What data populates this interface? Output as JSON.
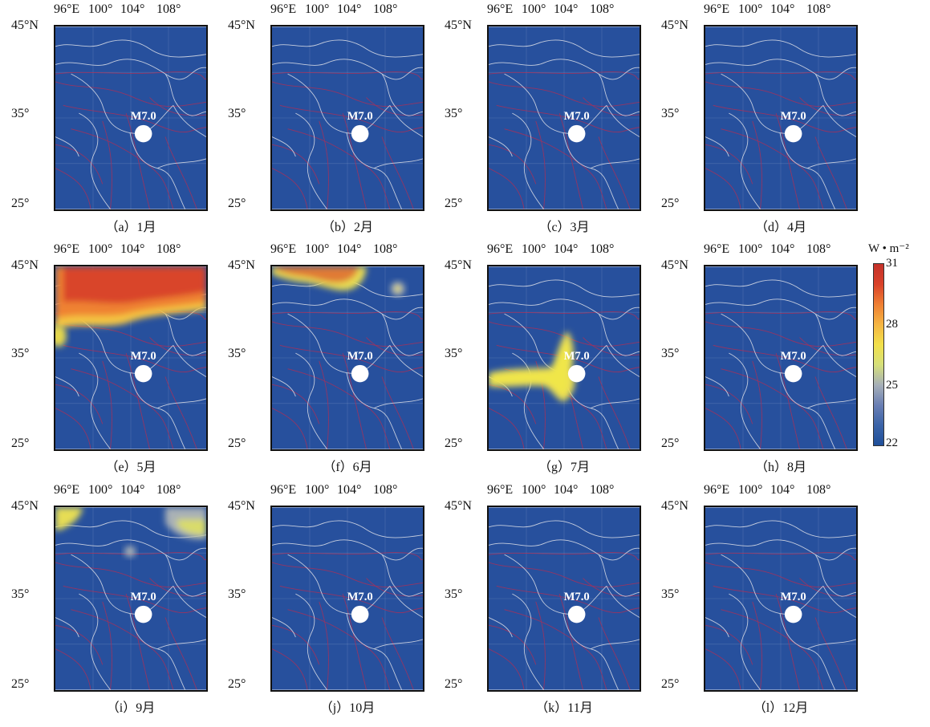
{
  "axes": {
    "lon_labels": [
      "96°E",
      "100°",
      "104°",
      "108°"
    ],
    "lat_labels": [
      "45°N",
      "35°",
      "25°"
    ]
  },
  "marker_label": "M7.0",
  "panels": [
    {
      "caption": "（a）1月",
      "anomalies": []
    },
    {
      "caption": "（b）2月",
      "anomalies": []
    },
    {
      "caption": "（c）3月",
      "anomalies": []
    },
    {
      "caption": "（d）4月",
      "anomalies": []
    },
    {
      "caption": "（e）5月",
      "anomalies": [
        "north-band",
        "west-edge"
      ]
    },
    {
      "caption": "（f）6月",
      "anomalies": [
        "north-patch",
        "east-spot"
      ]
    },
    {
      "caption": "（g）7月",
      "anomalies": [
        "central-cross"
      ]
    },
    {
      "caption": "（h）8月",
      "anomalies": []
    },
    {
      "caption": "（i）9月",
      "anomalies": [
        "nw-corner",
        "ne-corner",
        "small-spot"
      ]
    },
    {
      "caption": "（j）10月",
      "anomalies": []
    },
    {
      "caption": "（k）11月",
      "anomalies": []
    },
    {
      "caption": "（l）12月",
      "anomalies": []
    }
  ],
  "colorbar": {
    "unit": "W • m⁻²",
    "ticks": [
      "31",
      "28",
      "25",
      "22"
    ],
    "min": 22,
    "max": 31,
    "colors": [
      "#1f4f9a",
      "#3b64a8",
      "#6a7fb4",
      "#a7b0b8",
      "#d6e07a",
      "#f2e04a",
      "#f5b542",
      "#ef7f33",
      "#d9412a",
      "#c4322a"
    ]
  },
  "colors": {
    "map_background": "#27509d",
    "boundary": "#d7dbe6",
    "fault": "#a8305a",
    "marker": "#ffffff"
  }
}
